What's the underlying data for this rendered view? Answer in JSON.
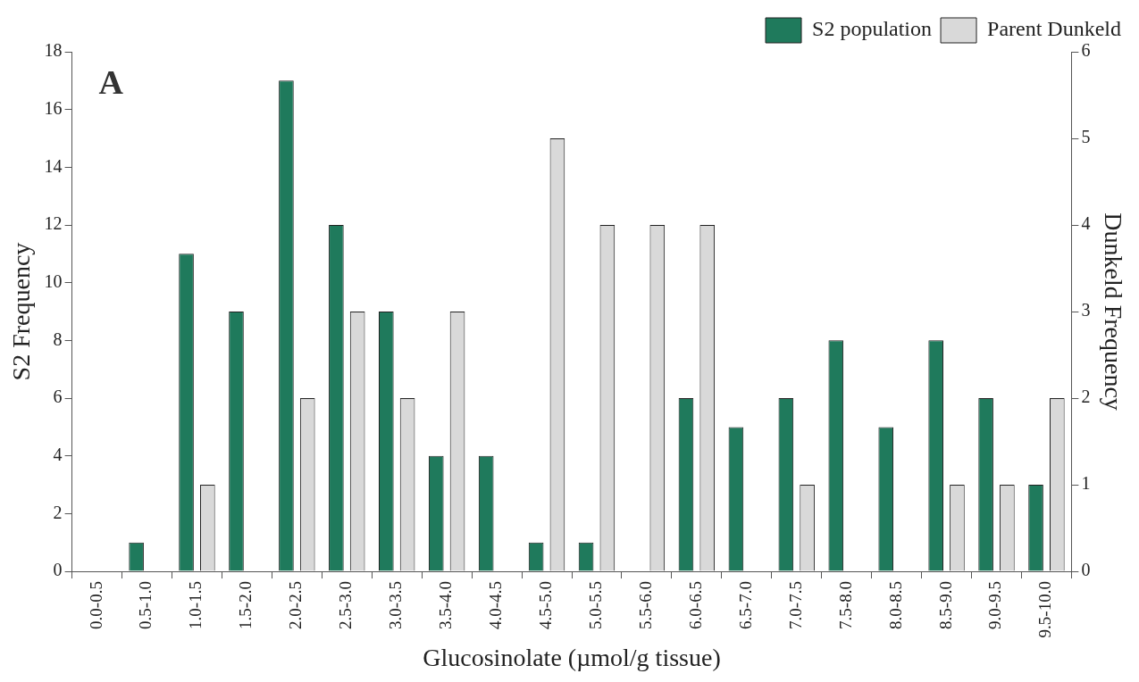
{
  "chart_data": {
    "type": "bar",
    "xlabel": "Glucosinolate (µmol/g tissue)",
    "ylabel": "S2 Frequency",
    "y2label": "Dunkeld Frequency",
    "categories": [
      "0.0-0.5",
      "0.5-1.0",
      "1.0-1.5",
      "1.5-2.0",
      "2.0-2.5",
      "2.5-3.0",
      "3.0-3.5",
      "3.5-4.0",
      "4.0-4.5",
      "4.5-5.0",
      "5.0-5.5",
      "5.5-6.0",
      "6.0-6.5",
      "6.5-7.0",
      "7.0-7.5",
      "7.5-8.0",
      "8.0-8.5",
      "8.5-9.0",
      "9.0-9.5",
      "9.5-10.0"
    ],
    "series": [
      {
        "name": "S2 population",
        "color": "#1f7a5c",
        "values": [
          0,
          1,
          11,
          9,
          17,
          12,
          9,
          4,
          4,
          1,
          1,
          0,
          6,
          5,
          6,
          8,
          5,
          8,
          6,
          3
        ]
      },
      {
        "name": "Parent Dunkeld",
        "color": "#d9d9d9",
        "axis": "y2",
        "values": [
          0,
          0,
          1,
          0,
          2,
          3,
          2,
          3,
          0,
          5,
          4,
          4,
          4,
          0,
          1,
          0,
          0,
          1,
          1,
          2
        ]
      }
    ],
    "ylim": [
      0,
      18
    ],
    "yticks": [
      0,
      2,
      4,
      6,
      8,
      10,
      12,
      14,
      16,
      18
    ],
    "y2lim": [
      0,
      6
    ],
    "y2ticks": [
      0,
      1,
      2,
      3,
      4,
      5,
      6
    ],
    "annotations": [
      "A"
    ],
    "legend": "top right",
    "grid": false
  }
}
